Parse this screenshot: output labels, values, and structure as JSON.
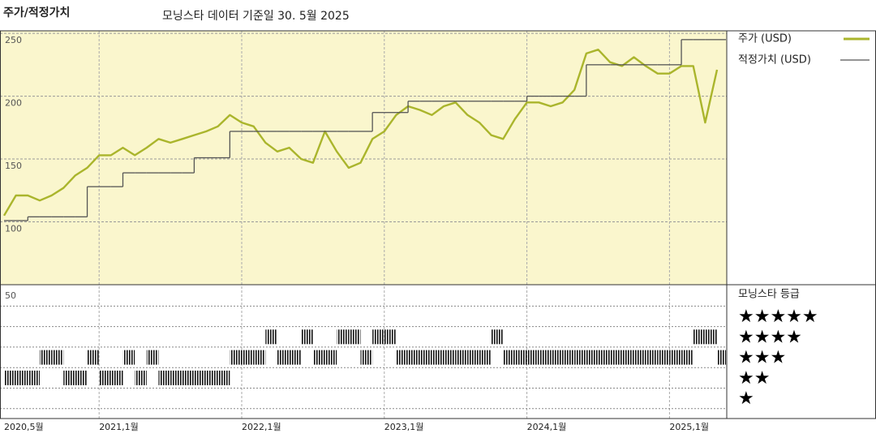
{
  "chart_data": {
    "type": "line",
    "title": "주가/적정가치",
    "subtitle": "모닝스타 데이터 기준일 30. 5월 2025",
    "x": [
      "2020-05",
      "2020-06",
      "2020-07",
      "2020-08",
      "2020-09",
      "2020-10",
      "2020-11",
      "2020-12",
      "2021-01",
      "2021-02",
      "2021-03",
      "2021-04",
      "2021-05",
      "2021-06",
      "2021-07",
      "2021-08",
      "2021-09",
      "2021-10",
      "2021-11",
      "2021-12",
      "2022-01",
      "2022-02",
      "2022-03",
      "2022-04",
      "2022-05",
      "2022-06",
      "2022-07",
      "2022-08",
      "2022-09",
      "2022-10",
      "2022-11",
      "2022-12",
      "2023-01",
      "2023-02",
      "2023-03",
      "2023-04",
      "2023-05",
      "2023-06",
      "2023-07",
      "2023-08",
      "2023-09",
      "2023-10",
      "2023-11",
      "2023-12",
      "2024-01",
      "2024-02",
      "2024-03",
      "2024-04",
      "2024-05",
      "2024-06",
      "2024-07",
      "2024-08",
      "2024-09",
      "2024-10",
      "2024-11",
      "2024-12",
      "2025-01",
      "2025-02",
      "2025-03",
      "2025-04",
      "2025-05"
    ],
    "xticks": [
      {
        "value": "2020-05",
        "label": "2020,5월"
      },
      {
        "value": "2021-01",
        "label": "2021,1월"
      },
      {
        "value": "2022-01",
        "label": "2022,1월"
      },
      {
        "value": "2023-01",
        "label": "2023,1월"
      },
      {
        "value": "2024-01",
        "label": "2024,1월"
      },
      {
        "value": "2025-01",
        "label": "2025,1월"
      }
    ],
    "series": [
      {
        "name": "주가 (USD)",
        "color": "#aab52c",
        "values": [
          105,
          121,
          121,
          117,
          121,
          127,
          137,
          143,
          153,
          153,
          159,
          153,
          159,
          166,
          163,
          166,
          169,
          172,
          176,
          185,
          179,
          176,
          163,
          156,
          159,
          150,
          147,
          172,
          156,
          143,
          147,
          166,
          172,
          185,
          192,
          189,
          185,
          192,
          195,
          185,
          179,
          169,
          166,
          182,
          195,
          195,
          192,
          195,
          205,
          234,
          237,
          227,
          224,
          231,
          224,
          218,
          218,
          224,
          224,
          179,
          221
        ]
      },
      {
        "name": "적정가치 (USD)",
        "color": "#555555",
        "step": true,
        "values": [
          101,
          101,
          104,
          104,
          104,
          104,
          104,
          128,
          128,
          128,
          139,
          139,
          139,
          139,
          139,
          139,
          151,
          151,
          151,
          172,
          172,
          172,
          172,
          172,
          172,
          172,
          172,
          172,
          172,
          172,
          172,
          187,
          187,
          187,
          196,
          196,
          196,
          196,
          196,
          196,
          196,
          196,
          196,
          196,
          200,
          200,
          200,
          200,
          200,
          225,
          225,
          225,
          225,
          225,
          225,
          225,
          225,
          245,
          245,
          245,
          245
        ]
      }
    ],
    "ylim": [
      50,
      252
    ],
    "yticks": [
      100,
      150,
      200,
      250
    ],
    "grid": true,
    "background": "#faf6cd",
    "rating": {
      "title": "모닝스타 등급",
      "top_label": 50,
      "color": "#111111",
      "levels": [
        {
          "value": 5,
          "label": "★★★★★"
        },
        {
          "value": 4,
          "label": "★★★★"
        },
        {
          "value": 3,
          "label": "★★★"
        },
        {
          "value": 2,
          "label": "★★"
        },
        {
          "value": 1,
          "label": "★"
        }
      ],
      "values": [
        2,
        2,
        2,
        3,
        3,
        2,
        2,
        3,
        2,
        2,
        3,
        2,
        3,
        2,
        2,
        2,
        2,
        2,
        2,
        3,
        3,
        3,
        4,
        3,
        3,
        4,
        3,
        3,
        4,
        4,
        3,
        4,
        4,
        3,
        3,
        3,
        3,
        3,
        3,
        3,
        3,
        4,
        3,
        3,
        3,
        3,
        3,
        3,
        3,
        3,
        3,
        3,
        3,
        3,
        3,
        3,
        3,
        3,
        4,
        4,
        3
      ]
    }
  }
}
